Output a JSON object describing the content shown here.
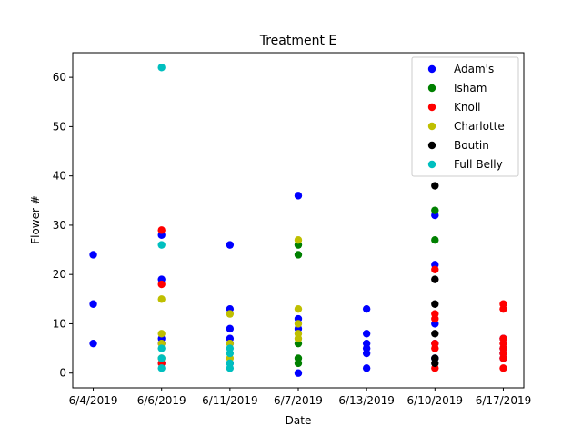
{
  "chart_data": {
    "type": "scatter",
    "title": "Treatment E",
    "xlabel": "Date",
    "ylabel": "Flower #",
    "categories": [
      "6/4/2019",
      "6/6/2019",
      "6/11/2019",
      "6/7/2019",
      "6/13/2019",
      "6/10/2019",
      "6/17/2019"
    ],
    "ylim": [
      -3,
      65
    ],
    "yticks": [
      0,
      10,
      20,
      30,
      40,
      50,
      60
    ],
    "grid": false,
    "legend_position": "top-right",
    "series": [
      {
        "name": "Adam's",
        "color": "#0000ff",
        "points": [
          [
            "6/4/2019",
            24
          ],
          [
            "6/4/2019",
            14
          ],
          [
            "6/4/2019",
            6
          ],
          [
            "6/6/2019",
            28
          ],
          [
            "6/6/2019",
            19
          ],
          [
            "6/6/2019",
            7
          ],
          [
            "6/6/2019",
            6
          ],
          [
            "6/6/2019",
            2
          ],
          [
            "6/11/2019",
            26
          ],
          [
            "6/11/2019",
            13
          ],
          [
            "6/11/2019",
            9
          ],
          [
            "6/11/2019",
            7
          ],
          [
            "6/11/2019",
            6
          ],
          [
            "6/11/2019",
            2
          ],
          [
            "6/7/2019",
            36
          ],
          [
            "6/7/2019",
            11
          ],
          [
            "6/7/2019",
            9
          ],
          [
            "6/7/2019",
            0
          ],
          [
            "6/13/2019",
            13
          ],
          [
            "6/13/2019",
            8
          ],
          [
            "6/13/2019",
            6
          ],
          [
            "6/13/2019",
            5
          ],
          [
            "6/13/2019",
            4
          ],
          [
            "6/13/2019",
            1
          ],
          [
            "6/10/2019",
            32
          ],
          [
            "6/10/2019",
            22
          ],
          [
            "6/10/2019",
            10
          ],
          [
            "6/10/2019",
            6
          ],
          [
            "6/10/2019",
            3
          ],
          [
            "6/17/2019",
            7
          ],
          [
            "6/17/2019",
            5
          ],
          [
            "6/17/2019",
            4
          ],
          [
            "6/17/2019",
            3
          ]
        ]
      },
      {
        "name": "Isham",
        "color": "#008000",
        "points": [
          [
            "6/7/2019",
            26
          ],
          [
            "6/7/2019",
            24
          ],
          [
            "6/7/2019",
            6
          ],
          [
            "6/7/2019",
            3
          ],
          [
            "6/7/2019",
            2
          ],
          [
            "6/10/2019",
            33
          ],
          [
            "6/10/2019",
            27
          ]
        ]
      },
      {
        "name": "Knoll",
        "color": "#ff0000",
        "points": [
          [
            "6/6/2019",
            29
          ],
          [
            "6/6/2019",
            18
          ],
          [
            "6/6/2019",
            2
          ],
          [
            "6/10/2019",
            21
          ],
          [
            "6/10/2019",
            12
          ],
          [
            "6/10/2019",
            11
          ],
          [
            "6/10/2019",
            6
          ],
          [
            "6/10/2019",
            5
          ],
          [
            "6/10/2019",
            1
          ],
          [
            "6/17/2019",
            14
          ],
          [
            "6/17/2019",
            13
          ],
          [
            "6/17/2019",
            7
          ],
          [
            "6/17/2019",
            6
          ],
          [
            "6/17/2019",
            5
          ],
          [
            "6/17/2019",
            4
          ],
          [
            "6/17/2019",
            3
          ],
          [
            "6/17/2019",
            1
          ]
        ]
      },
      {
        "name": "Charlotte",
        "color": "#bfbf00",
        "points": [
          [
            "6/6/2019",
            15
          ],
          [
            "6/6/2019",
            8
          ],
          [
            "6/6/2019",
            6
          ],
          [
            "6/6/2019",
            3
          ],
          [
            "6/11/2019",
            12
          ],
          [
            "6/11/2019",
            6
          ],
          [
            "6/11/2019",
            3
          ],
          [
            "6/7/2019",
            27
          ],
          [
            "6/7/2019",
            13
          ],
          [
            "6/7/2019",
            10
          ],
          [
            "6/7/2019",
            8
          ],
          [
            "6/7/2019",
            7
          ]
        ]
      },
      {
        "name": "Boutin",
        "color": "#000000",
        "points": [
          [
            "6/10/2019",
            38
          ],
          [
            "6/10/2019",
            19
          ],
          [
            "6/10/2019",
            14
          ],
          [
            "6/10/2019",
            8
          ],
          [
            "6/10/2019",
            3
          ],
          [
            "6/10/2019",
            2
          ]
        ]
      },
      {
        "name": "Full Belly",
        "color": "#00bfbf",
        "points": [
          [
            "6/6/2019",
            62
          ],
          [
            "6/6/2019",
            26
          ],
          [
            "6/6/2019",
            5
          ],
          [
            "6/6/2019",
            3
          ],
          [
            "6/6/2019",
            1
          ],
          [
            "6/11/2019",
            5
          ],
          [
            "6/11/2019",
            4
          ],
          [
            "6/11/2019",
            2
          ],
          [
            "6/11/2019",
            1
          ]
        ]
      }
    ]
  }
}
